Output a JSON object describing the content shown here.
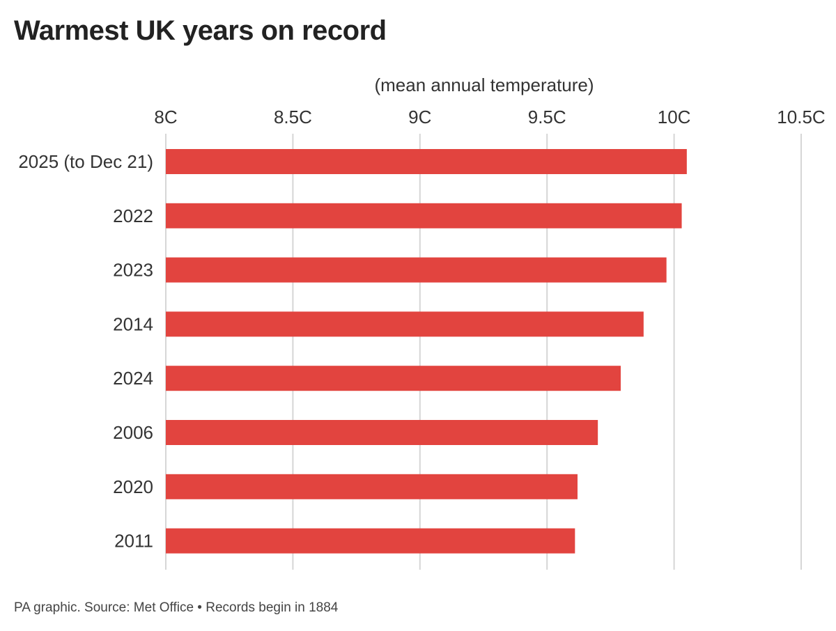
{
  "chart_data": {
    "type": "bar",
    "orientation": "horizontal",
    "title": "Warmest UK years on record",
    "subtitle": "(mean annual temperature)",
    "categories": [
      "2025 (to Dec 21)",
      "2022",
      "2023",
      "2014",
      "2024",
      "2006",
      "2020",
      "2011"
    ],
    "values": [
      10.05,
      10.03,
      9.97,
      9.88,
      9.79,
      9.7,
      9.62,
      9.61
    ],
    "unit": "C",
    "xlim": [
      8,
      10.5
    ],
    "ticks": [
      8,
      8.5,
      9,
      9.5,
      10,
      10.5
    ],
    "tick_labels": [
      "8C",
      "8.5C",
      "9C",
      "9.5C",
      "10C",
      "10.5C"
    ],
    "grid": true,
    "bar_color": "#e2443f",
    "grid_color": "#d6d6d6"
  },
  "footer": "PA graphic. Source: Met Office • Records begin in 1884"
}
